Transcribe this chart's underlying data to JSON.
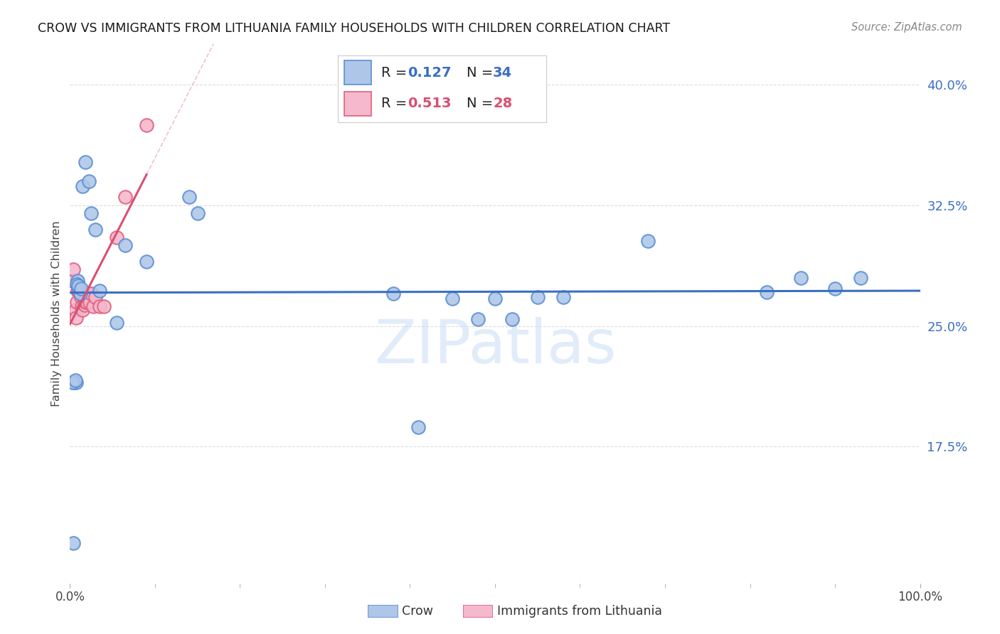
{
  "title": "CROW VS IMMIGRANTS FROM LITHUANIA FAMILY HOUSEHOLDS WITH CHILDREN CORRELATION CHART",
  "source": "Source: ZipAtlas.com",
  "ylabel": "Family Households with Children",
  "crow_color_face": "#aec6e8",
  "crow_color_edge": "#5b8fd4",
  "lith_color_face": "#f5b8cc",
  "lith_color_edge": "#e06080",
  "crow_line_color": "#3a6fc4",
  "lith_line_color": "#d95070",
  "watermark_color": "#c8ddf5",
  "ytick_values": [
    0.175,
    0.25,
    0.325,
    0.4
  ],
  "ytick_labels": [
    "17.5%",
    "25.0%",
    "32.5%",
    "40.0%"
  ],
  "ymin": 0.09,
  "ymax": 0.425,
  "xmin": 0.0,
  "xmax": 1.0,
  "crow_x": [
    0.005,
    0.007,
    0.009,
    0.012,
    0.015,
    0.018,
    0.022,
    0.025,
    0.03,
    0.035,
    0.055,
    0.065,
    0.09,
    0.14,
    0.15,
    0.38,
    0.41,
    0.55,
    0.58,
    0.68,
    0.82,
    0.86,
    0.9,
    0.93,
    0.003,
    0.004,
    0.006,
    0.008,
    0.01,
    0.013,
    0.45,
    0.5,
    0.52,
    0.48
  ],
  "crow_y": [
    0.215,
    0.215,
    0.278,
    0.27,
    0.337,
    0.352,
    0.34,
    0.32,
    0.31,
    0.272,
    0.252,
    0.3,
    0.29,
    0.33,
    0.32,
    0.27,
    0.187,
    0.268,
    0.268,
    0.303,
    0.271,
    0.28,
    0.273,
    0.28,
    0.215,
    0.115,
    0.216,
    0.276,
    0.275,
    0.273,
    0.267,
    0.267,
    0.254,
    0.254
  ],
  "lith_x": [
    0.003,
    0.004,
    0.006,
    0.007,
    0.008,
    0.009,
    0.01,
    0.011,
    0.012,
    0.013,
    0.014,
    0.015,
    0.016,
    0.017,
    0.018,
    0.019,
    0.02,
    0.021,
    0.022,
    0.023,
    0.025,
    0.027,
    0.03,
    0.035,
    0.04,
    0.055,
    0.065,
    0.09
  ],
  "lith_y": [
    0.278,
    0.285,
    0.26,
    0.255,
    0.265,
    0.272,
    0.272,
    0.272,
    0.272,
    0.268,
    0.262,
    0.26,
    0.268,
    0.263,
    0.265,
    0.268,
    0.265,
    0.27,
    0.268,
    0.265,
    0.27,
    0.262,
    0.268,
    0.262,
    0.262,
    0.305,
    0.33,
    0.375
  ],
  "lith_trend_x0": 0.0,
  "lith_trend_x1": 0.09,
  "lith_trend_ext_x1": 0.27,
  "background_color": "#ffffff",
  "grid_color": "#dddddd"
}
